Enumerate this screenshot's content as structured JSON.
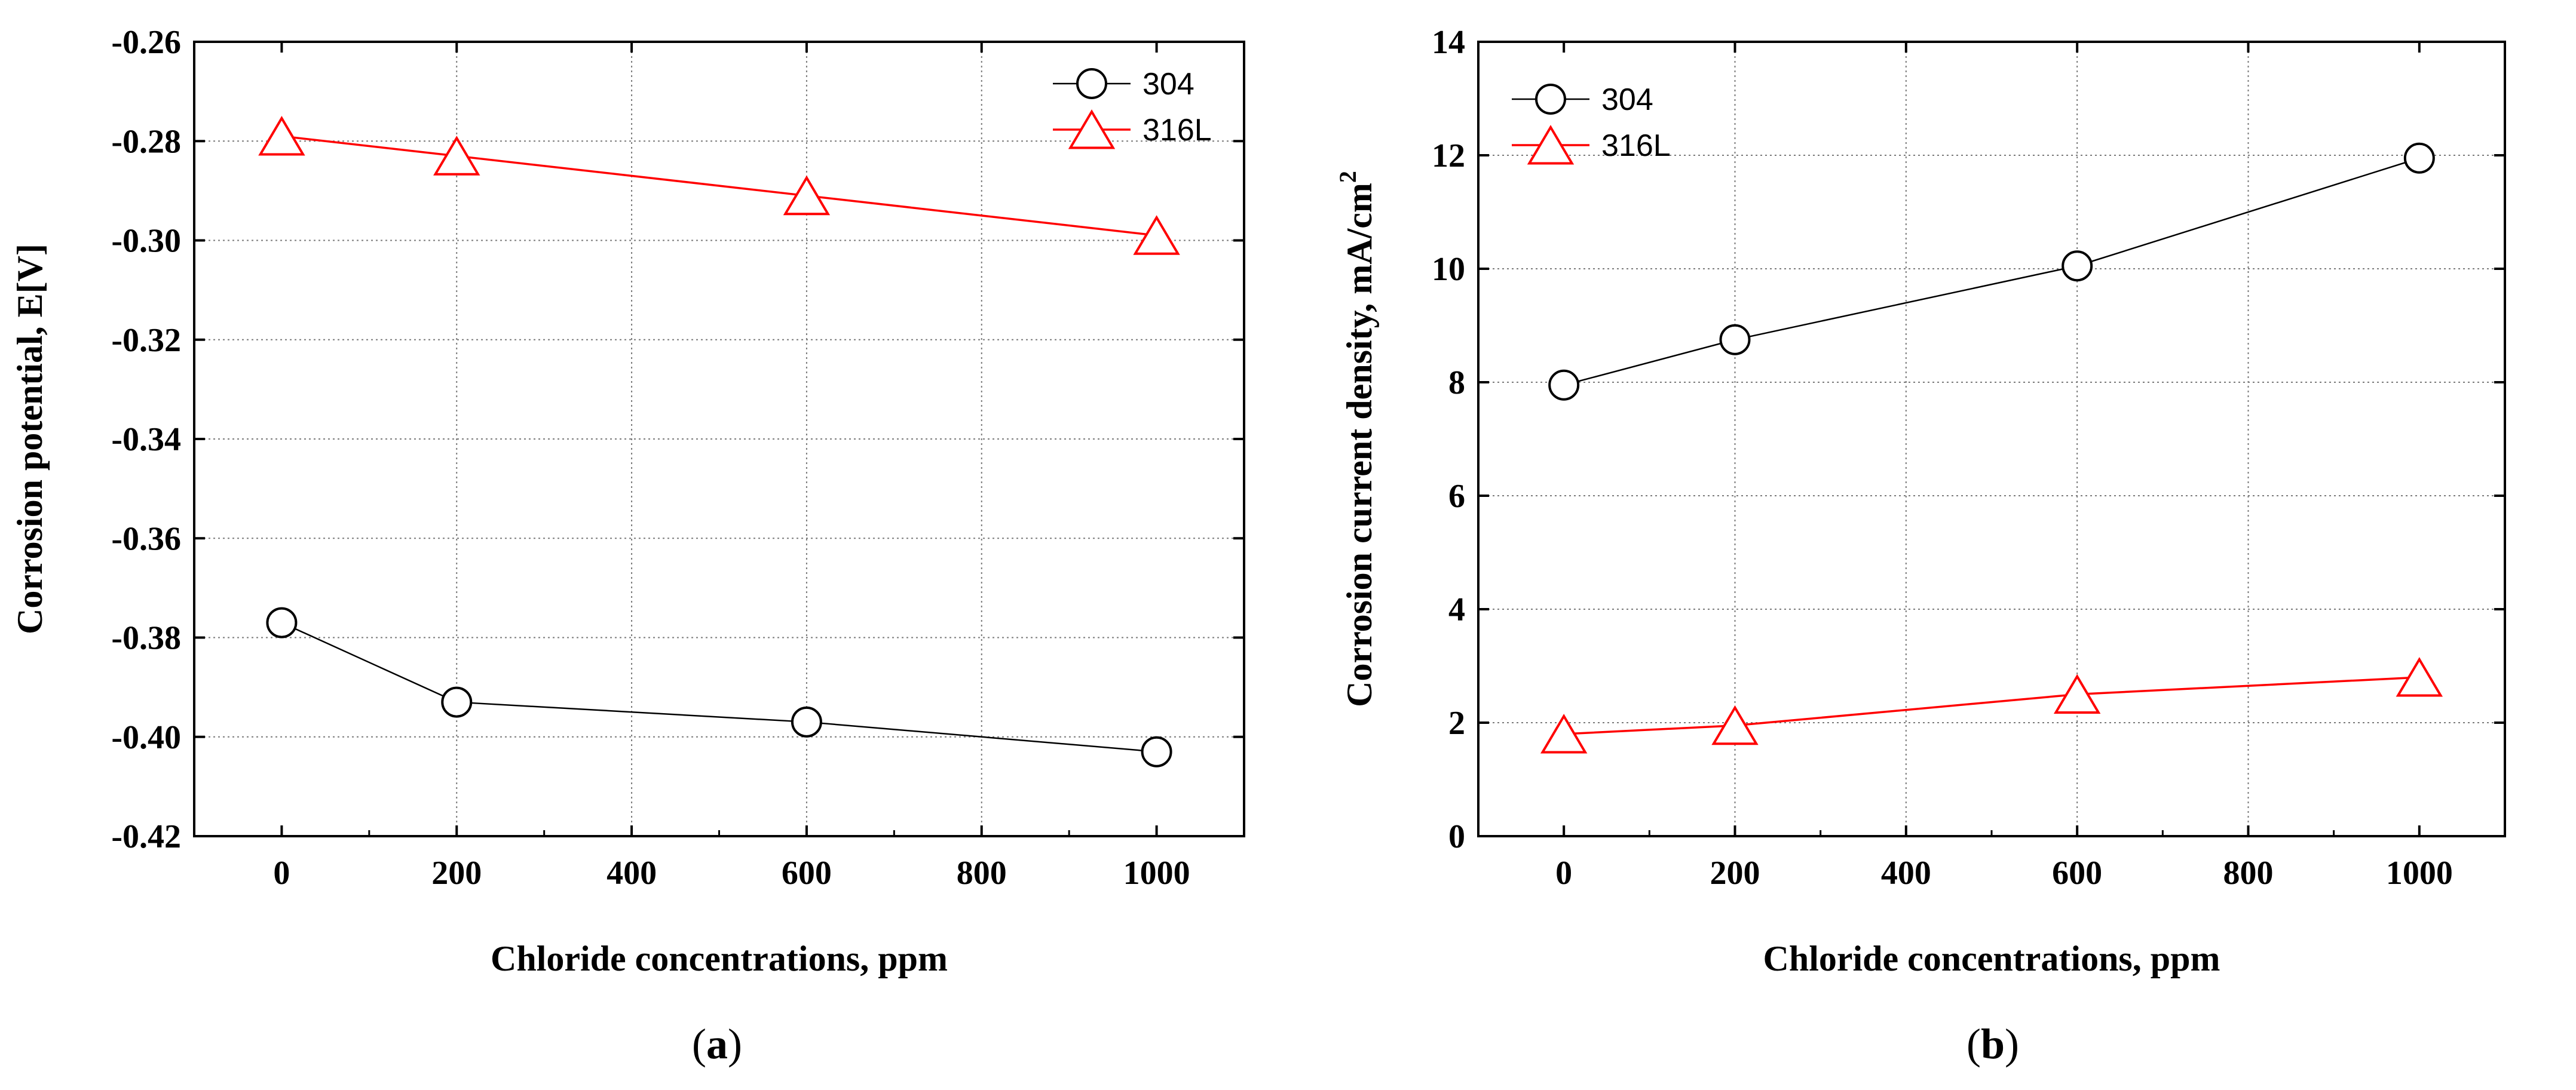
{
  "chart_data": [
    {
      "type": "line",
      "caption": "a",
      "title": "",
      "xlabel": "Chloride concentrations, ppm",
      "ylabel": "Corrosion potential, E[V]",
      "xlim": [
        -100,
        1100
      ],
      "ylim": [
        -0.42,
        -0.26
      ],
      "xticks": [
        0,
        200,
        400,
        600,
        800,
        1000
      ],
      "yticks": [
        -0.42,
        -0.4,
        -0.38,
        -0.36,
        -0.34,
        -0.32,
        -0.3,
        -0.28,
        -0.26
      ],
      "xtick_labels": [
        "0",
        "200",
        "400",
        "600",
        "800",
        "1000"
      ],
      "ytick_labels": [
        "-0.42",
        "-0.40",
        "-0.38",
        "-0.36",
        "-0.34",
        "-0.32",
        "-0.30",
        "-0.28",
        "-0.26"
      ],
      "grid": true,
      "legend_position": "top-right",
      "x": [
        0,
        200,
        600,
        1000
      ],
      "series": [
        {
          "name": "304",
          "marker": "circle",
          "color": "#000000",
          "values": [
            -0.377,
            -0.393,
            -0.397,
            -0.403
          ]
        },
        {
          "name": "316L",
          "marker": "triangle",
          "color": "#ff0000",
          "values": [
            -0.279,
            -0.283,
            -0.291,
            -0.299
          ]
        }
      ]
    },
    {
      "type": "line",
      "caption": "b",
      "title": "",
      "xlabel": "Chloride concentrations, ppm",
      "ylabel": "Corrosion current density, mA/cm",
      "ylabel_superscript": "2",
      "xlim": [
        -100,
        1100
      ],
      "ylim": [
        0,
        14
      ],
      "xticks": [
        0,
        200,
        400,
        600,
        800,
        1000
      ],
      "yticks": [
        0,
        2,
        4,
        6,
        8,
        10,
        12,
        14
      ],
      "xtick_labels": [
        "0",
        "200",
        "400",
        "600",
        "800",
        "1000"
      ],
      "ytick_labels": [
        "0",
        "2",
        "4",
        "6",
        "8",
        "10",
        "12",
        "14"
      ],
      "grid": true,
      "legend_position": "top-left",
      "x": [
        0,
        200,
        600,
        1000
      ],
      "series": [
        {
          "name": "304",
          "marker": "circle",
          "color": "#000000",
          "values": [
            7.95,
            8.75,
            10.05,
            11.95
          ]
        },
        {
          "name": "316L",
          "marker": "triangle",
          "color": "#ff0000",
          "values": [
            1.8,
            1.95,
            2.5,
            2.8
          ]
        }
      ]
    }
  ]
}
